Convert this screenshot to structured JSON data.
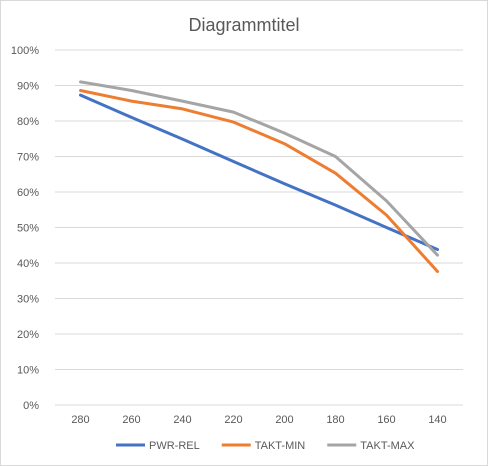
{
  "chart_data": {
    "type": "line",
    "title": "Diagrammtitel",
    "categories": [
      "280",
      "260",
      "240",
      "220",
      "200",
      "180",
      "160",
      "140"
    ],
    "yTickLabels": [
      "0%",
      "10%",
      "20%",
      "30%",
      "40%",
      "50%",
      "60%",
      "70%",
      "80%",
      "90%",
      "100%"
    ],
    "ylim": [
      0,
      100
    ],
    "grid": true,
    "legend_position": "bottom",
    "series": [
      {
        "name": "PWR-REL",
        "color": "#4472c4",
        "values": [
          87.3,
          81.0,
          74.9,
          68.6,
          62.3,
          56.3,
          50.0,
          43.8
        ]
      },
      {
        "name": "TAKT-MIN",
        "color": "#ed7d31",
        "values": [
          88.6,
          85.6,
          83.4,
          79.7,
          73.6,
          65.3,
          53.5,
          37.6
        ]
      },
      {
        "name": "TAKT-MAX",
        "color": "#a5a5a5",
        "values": [
          91.0,
          88.6,
          85.6,
          82.5,
          76.6,
          70.0,
          57.5,
          42.2
        ]
      }
    ]
  }
}
